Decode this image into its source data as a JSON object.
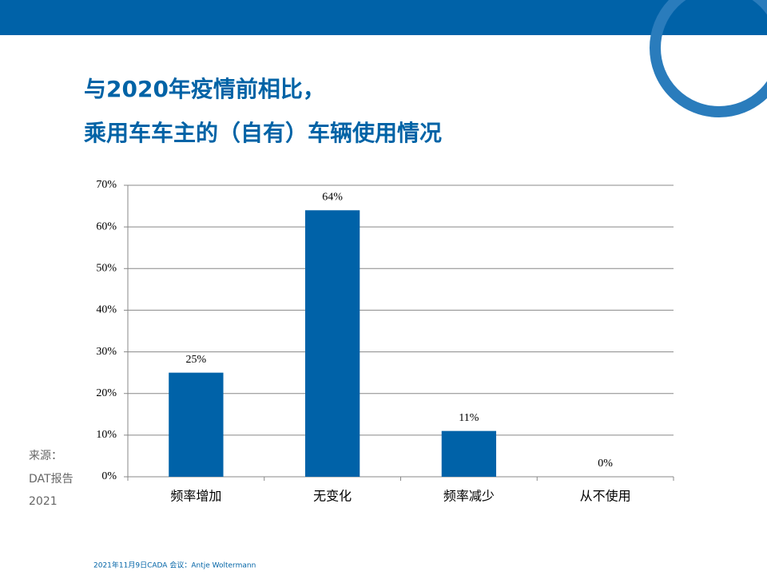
{
  "chart_data": {
    "type": "bar",
    "title": [
      "与2020年疫情前相比，",
      "乘用车车主的（自有）车辆使用情况"
    ],
    "categories": [
      "频率增加",
      "无变化",
      "频率减少",
      "从不使用"
    ],
    "values": [
      25,
      64,
      11,
      0
    ],
    "value_labels": [
      "25%",
      "64%",
      "11%",
      "0%"
    ],
    "color": "#0062a8",
    "ylim": [
      0,
      70
    ],
    "yticks": [
      {
        "value": 0,
        "label": "0%"
      },
      {
        "value": 10,
        "label": "10%"
      },
      {
        "value": 20,
        "label": "20%"
      },
      {
        "value": 30,
        "label": "30%"
      },
      {
        "value": 40,
        "label": "40%"
      },
      {
        "value": 50,
        "label": "50%"
      },
      {
        "value": 60,
        "label": "60%"
      },
      {
        "value": 70,
        "label": "70%"
      }
    ],
    "grid": true
  },
  "source": [
    "来源：",
    "DAT报告",
    "2021"
  ],
  "footer": "2021年11月9日CADA 会议：Antje Woltermann"
}
